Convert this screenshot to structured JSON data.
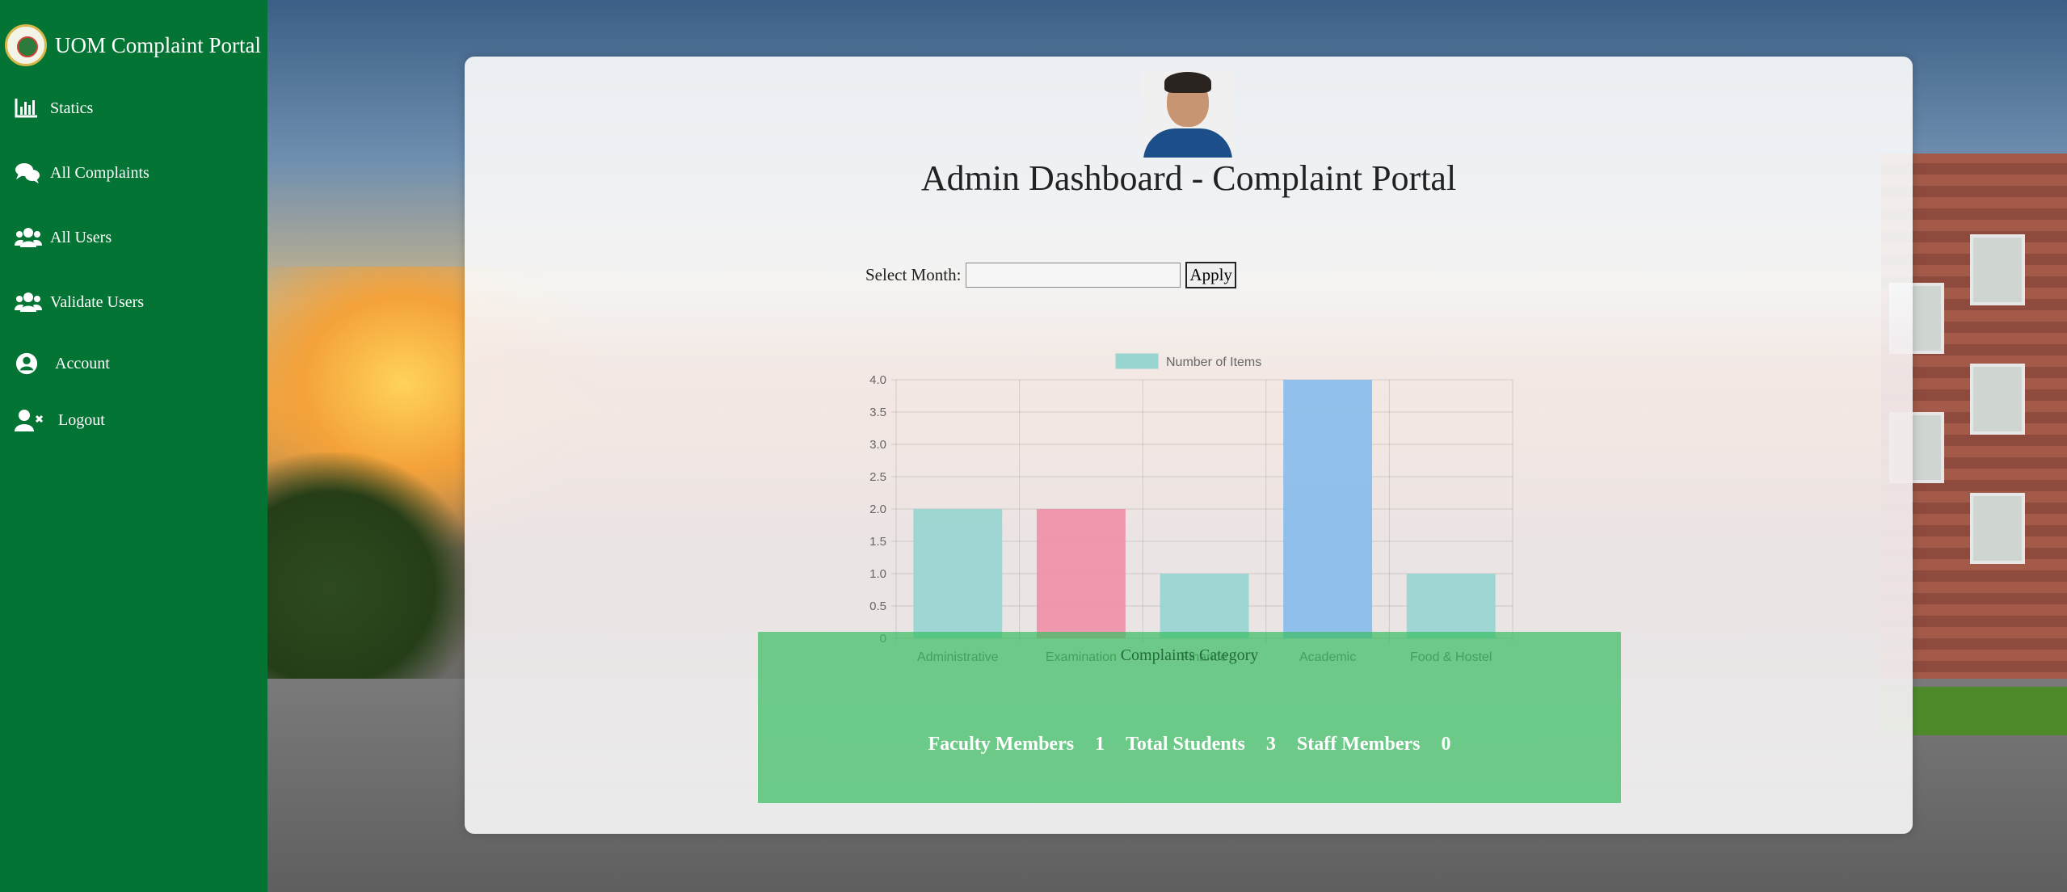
{
  "sidebar": {
    "brand_title": "UOM Complaint Portal",
    "items": [
      {
        "label": "Statics",
        "icon": "bar-chart-icon"
      },
      {
        "label": "All Complaints",
        "icon": "chat-bubbles-icon"
      },
      {
        "label": "All Users",
        "icon": "users-icon"
      },
      {
        "label": "Validate Users",
        "icon": "users-icon"
      },
      {
        "label": "Account",
        "icon": "user-circle-icon"
      },
      {
        "label": "Logout",
        "icon": "user-remove-icon"
      }
    ]
  },
  "main": {
    "title": "Admin Dashboard - Complaint Portal",
    "filter": {
      "label": "Select Month:",
      "value": "",
      "button_label": "Apply"
    }
  },
  "chart_data": {
    "type": "bar",
    "categories": [
      "Administrative",
      "Examination",
      "Finance",
      "Academic",
      "Food & Hostel"
    ],
    "series": [
      {
        "name": "Number of Items",
        "values": [
          2,
          2,
          1,
          4,
          1
        ]
      }
    ],
    "bar_colors": [
      "#8fd3cf",
      "#f08aa3",
      "#8fd3cf",
      "#7fb9ec",
      "#8fd3cf"
    ],
    "y_ticks": [
      "0",
      "0.5",
      "1.0",
      "1.5",
      "2.0",
      "2.5",
      "3.0",
      "3.5",
      "4.0"
    ],
    "ylim": [
      0,
      4
    ],
    "grid": true,
    "legend": "top"
  },
  "stats": {
    "caption": "Complaints Category",
    "faculty_label": "Faculty Members",
    "faculty_value": "1",
    "students_label": "Total Students",
    "students_value": "3",
    "staff_label": "Staff Members",
    "staff_value": "0"
  }
}
